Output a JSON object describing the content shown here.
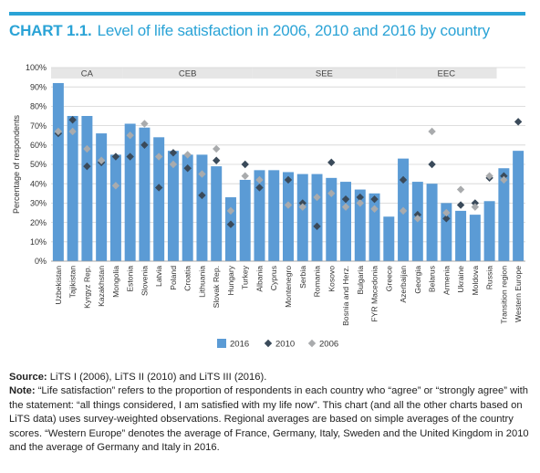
{
  "header": {
    "chart_label": "CHART 1.1.",
    "title": "Level of life satisfaction in 2006, 2010 and 2016 by country"
  },
  "colors": {
    "accent": "#2aa3d6",
    "bar_2016": "#5b9bd5",
    "marker_2010": "#3a4a5a",
    "marker_2006": "#a9abad",
    "region_band": "#e6e6e6"
  },
  "chart_data": {
    "type": "bar",
    "ylabel": "Percentage of respondents",
    "ylim": [
      0,
      100
    ],
    "yticks": [
      "0%",
      "10%",
      "20%",
      "30%",
      "40%",
      "50%",
      "60%",
      "70%",
      "80%",
      "90%",
      "100%"
    ],
    "grid": true,
    "legend_position": "bottom",
    "categories": [
      "Uzbekistan",
      "Tajikistan",
      "Kyrgyz Rep.",
      "Kazakhstan",
      "Mongolia",
      "Estonia",
      "Slovenia",
      "Latvia",
      "Poland",
      "Croatia",
      "Lithuania",
      "Slovak Rep.",
      "Hungary",
      "Turkey",
      "Albania",
      "Cyprus",
      "Montenegro",
      "Serbia",
      "Romania",
      "Kosovo",
      "Bosnia and Herz.",
      "Bulgaria",
      "FYR Macedonia",
      "Greece",
      "Azerbaijan",
      "Georgia",
      "Belarus",
      "Armenia",
      "Ukraine",
      "Moldova",
      "Russia",
      "Transition region",
      "Western Europe"
    ],
    "regions": [
      {
        "name": "CA",
        "start": 0,
        "end": 4
      },
      {
        "name": "CEB",
        "start": 5,
        "end": 13
      },
      {
        "name": "SEE",
        "start": 14,
        "end": 23
      },
      {
        "name": "EEC",
        "start": 24,
        "end": 30
      }
    ],
    "series": [
      {
        "name": "2016",
        "kind": "bar",
        "values": [
          92,
          75,
          75,
          66,
          55,
          71,
          69,
          64,
          57,
          55,
          55,
          49,
          33,
          42,
          47,
          47,
          46,
          45,
          45,
          43,
          41,
          37,
          35,
          23,
          53,
          41,
          40,
          30,
          26,
          24,
          31,
          48,
          57
        ]
      },
      {
        "name": "2010",
        "kind": "marker",
        "values": [
          66,
          73,
          49,
          51,
          54,
          54,
          60,
          38,
          56,
          48,
          34,
          52,
          19,
          50,
          38,
          null,
          42,
          30,
          18,
          51,
          32,
          33,
          32,
          null,
          42,
          24,
          50,
          22,
          29,
          30,
          43,
          44,
          72
        ]
      },
      {
        "name": "2006",
        "kind": "marker",
        "values": [
          67,
          67,
          58,
          52,
          39,
          65,
          71,
          54,
          50,
          55,
          45,
          58,
          26,
          44,
          42,
          null,
          29,
          28,
          33,
          35,
          28,
          30,
          27,
          null,
          26,
          22,
          67,
          25,
          37,
          28,
          44,
          42,
          null
        ]
      }
    ]
  },
  "notes": {
    "source_label": "Source:",
    "source_text": "LiTS I (2006), LiTS II (2010) and LiTS III (2016).",
    "note_label": "Note:",
    "note_text": "“Life satisfaction” refers to the proportion of respondents in each country who “agree” or “strongly agree” with the statement: “all things considered, I am satisfied with my life now”. This chart (and all the other charts based on LiTS data) uses survey-weighted observations. Regional averages are based on simple averages of the country scores. “Western Europe” denotes the average of France, Germany, Italy, Sweden and the United Kingdom in 2010 and the average of Germany and Italy in 2016."
  }
}
